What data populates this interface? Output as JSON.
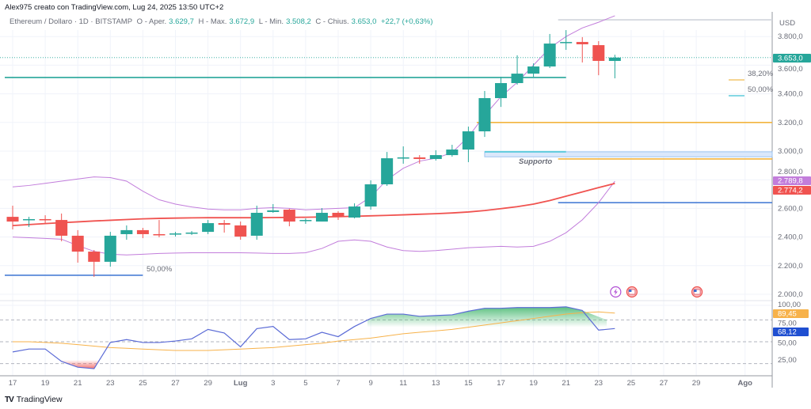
{
  "header": {
    "attribution": "Alex975 creato con TradingView.com, Lug 24, 2025 13:50 UTC+2",
    "symbol": "Ethereum / Dollaro · 1D · BITSTAMP",
    "open_label": "O - Aper.",
    "open": "3.629,7",
    "high_label": "H - Max.",
    "high": "3.672,9",
    "low_label": "L - Min.",
    "low": "3.508,2",
    "close_label": "C - Chius.",
    "close": "3.653,0",
    "change": "+22,7 (+0,63%)"
  },
  "colors": {
    "up": "#26a69a",
    "down": "#ef5350",
    "ma": "#f05350",
    "bands": "#c27ddb",
    "osc": "#5b6bd6",
    "signal": "#f7b24a"
  },
  "price_axis": {
    "currency": "USD",
    "ticks": [
      3800,
      3600,
      3400,
      3200,
      3000,
      2800,
      2600,
      2400,
      2200,
      2000
    ],
    "tick_labels": [
      "3.800,0",
      "3.600,0",
      "3.400,0",
      "3.200,0",
      "3.000,0",
      "2.800,0",
      "2.600,0",
      "2.400,0",
      "2.200,0",
      "2.000,0"
    ]
  },
  "osc_axis": {
    "ticks": [
      100,
      75,
      50,
      25
    ],
    "tick_labels": [
      "100,00",
      "75,00",
      "50,00",
      "25,00"
    ],
    "levels": [
      80,
      50,
      20
    ]
  },
  "time_axis": {
    "labels": [
      "17",
      "19",
      "21",
      "23",
      "25",
      "27",
      "29",
      "Lug",
      "3",
      "5",
      "7",
      "9",
      "11",
      "13",
      "15",
      "17",
      "19",
      "21",
      "23",
      "25",
      "27",
      "29",
      "Ago"
    ],
    "label_day_index": [
      0,
      2,
      4,
      6,
      8,
      10,
      12,
      14,
      16,
      18,
      20,
      22,
      24,
      26,
      28,
      30,
      32,
      34,
      36,
      38,
      40,
      42,
      45
    ]
  },
  "price_labels": {
    "last": "3.653,0",
    "band": "2.789,8",
    "ma": "2.774,2",
    "signal": "89,45",
    "osc": "68,12"
  },
  "drawings": {
    "support_text": "Supporto",
    "fib_382": "38,20%",
    "fib_50_right": "50,00%",
    "fib_50_left": "50,00%",
    "levels": [
      {
        "price": 3514,
        "color": "#26a69a",
        "from": 0,
        "to": 34
      },
      {
        "price": 3917,
        "color": "#d1d4dc",
        "from": 34,
        "to": 47
      },
      {
        "price": 3200,
        "color": "#f2b33d",
        "from": 29,
        "to": 47
      },
      {
        "price": 2945,
        "color": "#f2b33d",
        "from": 34,
        "to": 47
      },
      {
        "price": 2640,
        "color": "#4a7fd6",
        "from": 34,
        "to": 47
      },
      {
        "price": 2133,
        "color": "#4a7fd6",
        "from": 0,
        "to": 8
      }
    ],
    "support_zone": [
      2960,
      2995
    ]
  },
  "events": [
    {
      "day_index": 37,
      "icon": "lightning-icon"
    },
    {
      "day_index": 38,
      "icon": "us-flag-icon"
    },
    {
      "day_index": 42,
      "icon": "us-flag-icon"
    }
  ],
  "chart_data": {
    "type": "candlestick",
    "dates": [
      "Jun17",
      "Jun18",
      "Jun19",
      "Jun20",
      "Jun21",
      "Jun22",
      "Jun23",
      "Jun24",
      "Jun25",
      "Jun26",
      "Jun27",
      "Jun28",
      "Jun29",
      "Jun30",
      "Jul1",
      "Jul2",
      "Jul3",
      "Jul4",
      "Jul5",
      "Jul6",
      "Jul7",
      "Jul8",
      "Jul9",
      "Jul10",
      "Jul11",
      "Jul12",
      "Jul13",
      "Jul14",
      "Jul15",
      "Jul16",
      "Jul17",
      "Jul18",
      "Jul19",
      "Jul20",
      "Jul21",
      "Jul22",
      "Jul23",
      "Jul24"
    ],
    "ohlc": [
      [
        2541,
        2619,
        2453,
        2508
      ],
      [
        2519,
        2541,
        2470,
        2525
      ],
      [
        2525,
        2552,
        2492,
        2519
      ],
      [
        2519,
        2564,
        2370,
        2409
      ],
      [
        2409,
        2448,
        2221,
        2298
      ],
      [
        2298,
        2309,
        2122,
        2227
      ],
      [
        2227,
        2436,
        2193,
        2409
      ],
      [
        2420,
        2481,
        2381,
        2448
      ],
      [
        2448,
        2464,
        2392,
        2420
      ],
      [
        2420,
        2519,
        2398,
        2414
      ],
      [
        2420,
        2436,
        2403,
        2425
      ],
      [
        2425,
        2442,
        2414,
        2431
      ],
      [
        2436,
        2519,
        2420,
        2497
      ],
      [
        2497,
        2519,
        2431,
        2486
      ],
      [
        2481,
        2508,
        2381,
        2403
      ],
      [
        2409,
        2619,
        2381,
        2569
      ],
      [
        2575,
        2630,
        2569,
        2586
      ],
      [
        2591,
        2597,
        2475,
        2508
      ],
      [
        2514,
        2530,
        2492,
        2519
      ],
      [
        2508,
        2602,
        2508,
        2569
      ],
      [
        2569,
        2580,
        2519,
        2541
      ],
      [
        2536,
        2635,
        2530,
        2613
      ],
      [
        2613,
        2796,
        2591,
        2768
      ],
      [
        2768,
        2994,
        2757,
        2950
      ],
      [
        2950,
        3033,
        2912,
        2956
      ],
      [
        2956,
        2972,
        2912,
        2945
      ],
      [
        2945,
        3006,
        2934,
        2972
      ],
      [
        2972,
        3044,
        2961,
        3011
      ],
      [
        3011,
        3171,
        2923,
        3138
      ],
      [
        3138,
        3420,
        3099,
        3370
      ],
      [
        3370,
        3519,
        3309,
        3475
      ],
      [
        3475,
        3669,
        3464,
        3541
      ],
      [
        3541,
        3613,
        3519,
        3591
      ],
      [
        3591,
        3818,
        3580,
        3751
      ],
      [
        3757,
        3845,
        3707,
        3762
      ],
      [
        3762,
        3796,
        3619,
        3746
      ],
      [
        3740,
        3768,
        3530,
        3630
      ],
      [
        3629.7,
        3672.9,
        3508.2,
        3653.0
      ]
    ],
    "ma": [
      2480,
      2487,
      2494,
      2500,
      2506,
      2512,
      2517,
      2522,
      2527,
      2530,
      2532,
      2534,
      2535,
      2535,
      2535,
      2535,
      2536,
      2537,
      2538,
      2540,
      2542,
      2545,
      2548,
      2551,
      2555,
      2559,
      2563,
      2568,
      2575,
      2585,
      2598,
      2612,
      2630,
      2655,
      2685,
      2715,
      2745,
      2774.2
    ],
    "upper_band": [
      2750,
      2760,
      2775,
      2790,
      2805,
      2820,
      2815,
      2790,
      2720,
      2660,
      2630,
      2610,
      2595,
      2590,
      2590,
      2600,
      2605,
      2600,
      2590,
      2595,
      2600,
      2605,
      2680,
      2800,
      2880,
      2930,
      2950,
      2990,
      3100,
      3250,
      3380,
      3480,
      3600,
      3720,
      3800,
      3860,
      3900,
      3945
    ],
    "lower_band": [
      2400,
      2395,
      2390,
      2385,
      2340,
      2300,
      2280,
      2275,
      2280,
      2285,
      2288,
      2290,
      2290,
      2290,
      2290,
      2288,
      2285,
      2285,
      2290,
      2320,
      2370,
      2380,
      2370,
      2330,
      2305,
      2300,
      2305,
      2315,
      2325,
      2330,
      2335,
      2330,
      2335,
      2370,
      2430,
      2520,
      2640,
      2789.8
    ],
    "oscillator": [
      36,
      40,
      40,
      23,
      15,
      13,
      49,
      53,
      49,
      49,
      51,
      54,
      67,
      62,
      43,
      68,
      71,
      53,
      54,
      63,
      57,
      71,
      82,
      88,
      88,
      85,
      86,
      87,
      92,
      96,
      96,
      97,
      97,
      97,
      98,
      93,
      66,
      68.12
    ],
    "signal": [
      50,
      50,
      49,
      48,
      46,
      44,
      42,
      41,
      40,
      39,
      38,
      38,
      38,
      39,
      40,
      41,
      42,
      44,
      46,
      48,
      51,
      53,
      55,
      58,
      61,
      63,
      65,
      67,
      70,
      73,
      76,
      79,
      82,
      85,
      88,
      90,
      91,
      89.45
    ],
    "price_range": [
      1950,
      3960
    ],
    "osc_range": [
      0,
      105
    ],
    "grid": true
  }
}
